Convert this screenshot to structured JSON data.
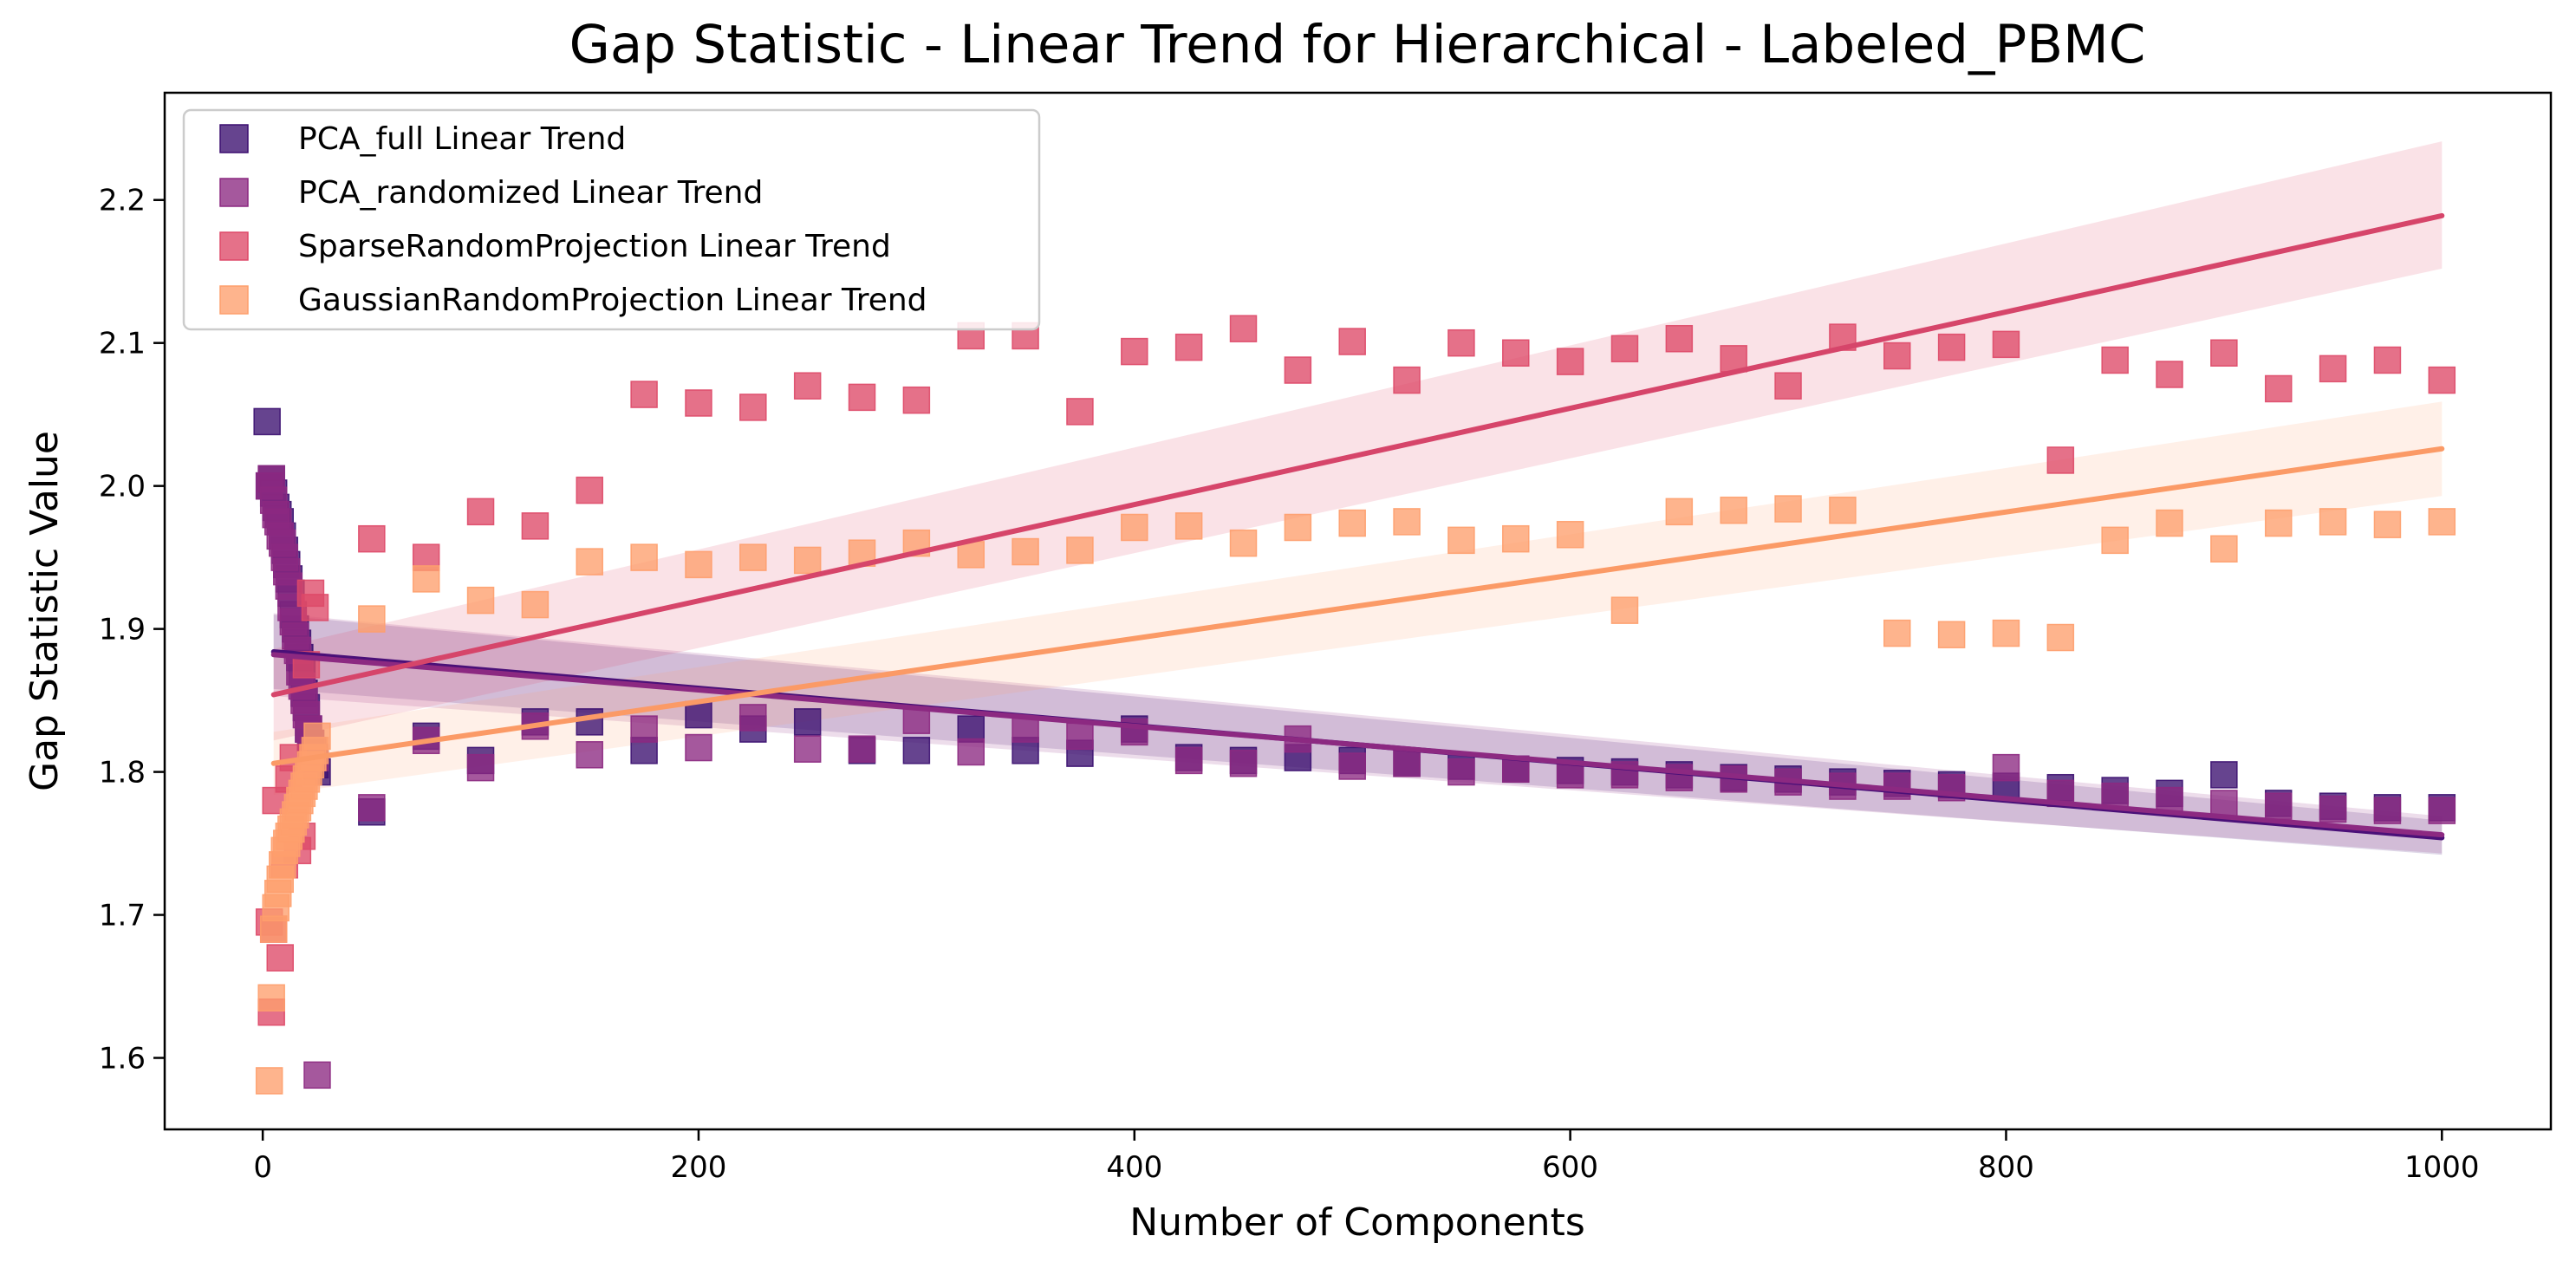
{
  "chart_data": {
    "type": "scatter",
    "title": "Gap Statistic - Linear Trend for Hierarchical - Labeled_PBMC",
    "xlabel": "Number of Components",
    "ylabel": "Gap Statistic Value",
    "xlim": [
      -45,
      1050
    ],
    "ylim": [
      1.55,
      2.275
    ],
    "x_ticks": [
      0,
      200,
      400,
      600,
      800,
      1000
    ],
    "y_ticks": [
      1.6,
      1.7,
      1.8,
      1.9,
      2.0,
      2.1,
      2.2
    ],
    "grid": false,
    "legend_position": "upper-left",
    "series": [
      {
        "name": "PCA_full Linear Trend",
        "color": "#3b0f70",
        "fit_color": "#4a1078",
        "trend": {
          "x": [
            5,
            1000
          ],
          "y": [
            1.884,
            1.754
          ]
        },
        "band": {
          "x": [
            5,
            1000
          ],
          "lower": [
            1.858,
            1.742
          ],
          "upper": [
            1.91,
            1.766
          ]
        },
        "points": [
          [
            2,
            2.045
          ],
          [
            3,
            2.0
          ],
          [
            4,
            2.005
          ],
          [
            5,
            1.995
          ],
          [
            6,
            1.985
          ],
          [
            7,
            1.98
          ],
          [
            8,
            1.975
          ],
          [
            9,
            1.965
          ],
          [
            10,
            1.955
          ],
          [
            11,
            1.945
          ],
          [
            12,
            1.935
          ],
          [
            13,
            1.925
          ],
          [
            14,
            1.91
          ],
          [
            15,
            1.9
          ],
          [
            16,
            1.89
          ],
          [
            17,
            1.88
          ],
          [
            18,
            1.87
          ],
          [
            19,
            1.855
          ],
          [
            20,
            1.845
          ],
          [
            21,
            1.83
          ],
          [
            22,
            1.82
          ],
          [
            23,
            1.81
          ],
          [
            24,
            1.805
          ],
          [
            25,
            1.8
          ],
          [
            50,
            1.772
          ],
          [
            75,
            1.825
          ],
          [
            100,
            1.808
          ],
          [
            125,
            1.835
          ],
          [
            150,
            1.835
          ],
          [
            175,
            1.815
          ],
          [
            200,
            1.84
          ],
          [
            225,
            1.83
          ],
          [
            250,
            1.835
          ],
          [
            275,
            1.815
          ],
          [
            300,
            1.815
          ],
          [
            325,
            1.83
          ],
          [
            350,
            1.815
          ],
          [
            375,
            1.813
          ],
          [
            400,
            1.83
          ],
          [
            425,
            1.81
          ],
          [
            450,
            1.808
          ],
          [
            475,
            1.81
          ],
          [
            500,
            1.808
          ],
          [
            525,
            1.806
          ],
          [
            550,
            1.804
          ],
          [
            575,
            1.802
          ],
          [
            600,
            1.801
          ],
          [
            625,
            1.8
          ],
          [
            650,
            1.798
          ],
          [
            675,
            1.796
          ],
          [
            700,
            1.795
          ],
          [
            725,
            1.793
          ],
          [
            750,
            1.792
          ],
          [
            775,
            1.791
          ],
          [
            800,
            1.79
          ],
          [
            825,
            1.789
          ],
          [
            850,
            1.787
          ],
          [
            875,
            1.785
          ],
          [
            900,
            1.798
          ],
          [
            925,
            1.778
          ],
          [
            950,
            1.776
          ],
          [
            975,
            1.775
          ],
          [
            1000,
            1.775
          ]
        ]
      },
      {
        "name": "PCA_randomized Linear Trend",
        "color": "#8c2981",
        "fit_color": "#8c2981",
        "trend": {
          "x": [
            5,
            1000
          ],
          "y": [
            1.882,
            1.756
          ]
        },
        "band": {
          "x": [
            5,
            1000
          ],
          "lower": [
            1.853,
            1.743
          ],
          "upper": [
            1.911,
            1.769
          ]
        },
        "points": [
          [
            3,
            2.0
          ],
          [
            4,
            2.005
          ],
          [
            5,
            1.99
          ],
          [
            6,
            1.98
          ],
          [
            7,
            1.975
          ],
          [
            8,
            1.965
          ],
          [
            9,
            1.96
          ],
          [
            10,
            1.95
          ],
          [
            11,
            1.94
          ],
          [
            12,
            1.93
          ],
          [
            13,
            1.915
          ],
          [
            14,
            1.905
          ],
          [
            15,
            1.895
          ],
          [
            16,
            1.885
          ],
          [
            17,
            1.87
          ],
          [
            18,
            1.86
          ],
          [
            19,
            1.85
          ],
          [
            20,
            1.84
          ],
          [
            21,
            1.83
          ],
          [
            22,
            1.82
          ],
          [
            23,
            1.815
          ],
          [
            24,
            1.81
          ],
          [
            25,
            1.588
          ],
          [
            50,
            1.775
          ],
          [
            75,
            1.822
          ],
          [
            100,
            1.803
          ],
          [
            125,
            1.832
          ],
          [
            150,
            1.812
          ],
          [
            175,
            1.83
          ],
          [
            200,
            1.817
          ],
          [
            225,
            1.838
          ],
          [
            250,
            1.816
          ],
          [
            275,
            1.816
          ],
          [
            300,
            1.836
          ],
          [
            325,
            1.814
          ],
          [
            350,
            1.83
          ],
          [
            375,
            1.825
          ],
          [
            400,
            1.828
          ],
          [
            425,
            1.808
          ],
          [
            450,
            1.806
          ],
          [
            475,
            1.823
          ],
          [
            500,
            1.804
          ],
          [
            525,
            1.806
          ],
          [
            550,
            1.8
          ],
          [
            575,
            1.802
          ],
          [
            600,
            1.798
          ],
          [
            625,
            1.798
          ],
          [
            650,
            1.796
          ],
          [
            675,
            1.795
          ],
          [
            700,
            1.793
          ],
          [
            725,
            1.79
          ],
          [
            750,
            1.79
          ],
          [
            775,
            1.789
          ],
          [
            800,
            1.803
          ],
          [
            825,
            1.785
          ],
          [
            850,
            1.783
          ],
          [
            875,
            1.78
          ],
          [
            900,
            1.778
          ],
          [
            925,
            1.776
          ],
          [
            950,
            1.774
          ],
          [
            975,
            1.773
          ],
          [
            1000,
            1.773
          ]
        ]
      },
      {
        "name": "SparseRandomProjection Linear Trend",
        "color": "#de4968",
        "fit_color": "#d6456a",
        "trend": {
          "x": [
            5,
            1000
          ],
          "y": [
            1.854,
            2.189
          ]
        },
        "band": {
          "x": [
            5,
            1000
          ],
          "lower": [
            1.822,
            2.152
          ],
          "upper": [
            1.886,
            2.241
          ]
        },
        "points": [
          [
            3,
            1.695
          ],
          [
            4,
            1.632
          ],
          [
            5,
            1.69
          ],
          [
            6,
            1.78
          ],
          [
            8,
            1.67
          ],
          [
            10,
            1.735
          ],
          [
            12,
            1.795
          ],
          [
            14,
            1.81
          ],
          [
            16,
            1.745
          ],
          [
            18,
            1.755
          ],
          [
            20,
            1.875
          ],
          [
            22,
            1.925
          ],
          [
            24,
            1.915
          ],
          [
            50,
            1.963
          ],
          [
            75,
            1.95
          ],
          [
            100,
            1.982
          ],
          [
            125,
            1.972
          ],
          [
            150,
            1.997
          ],
          [
            175,
            2.064
          ],
          [
            200,
            2.058
          ],
          [
            225,
            2.055
          ],
          [
            250,
            2.07
          ],
          [
            275,
            2.062
          ],
          [
            300,
            2.06
          ],
          [
            325,
            2.105
          ],
          [
            350,
            2.105
          ],
          [
            375,
            2.052
          ],
          [
            400,
            2.094
          ],
          [
            425,
            2.097
          ],
          [
            450,
            2.11
          ],
          [
            475,
            2.081
          ],
          [
            500,
            2.101
          ],
          [
            525,
            2.074
          ],
          [
            550,
            2.1
          ],
          [
            575,
            2.093
          ],
          [
            600,
            2.087
          ],
          [
            625,
            2.096
          ],
          [
            650,
            2.103
          ],
          [
            675,
            2.089
          ],
          [
            700,
            2.07
          ],
          [
            725,
            2.104
          ],
          [
            750,
            2.091
          ],
          [
            775,
            2.097
          ],
          [
            800,
            2.099
          ],
          [
            825,
            2.018
          ],
          [
            850,
            2.088
          ],
          [
            875,
            2.078
          ],
          [
            900,
            2.093
          ],
          [
            925,
            2.068
          ],
          [
            950,
            2.082
          ],
          [
            975,
            2.088
          ],
          [
            1000,
            2.074
          ]
        ]
      },
      {
        "name": "GaussianRandomProjection Linear Trend",
        "color": "#fe9f6d",
        "fit_color": "#fb9a66",
        "trend": {
          "x": [
            5,
            1000
          ],
          "y": [
            1.806,
            2.026
          ]
        },
        "band": {
          "x": [
            5,
            1000
          ],
          "lower": [
            1.784,
            1.993
          ],
          "upper": [
            1.828,
            2.059
          ]
        },
        "points": [
          [
            3,
            1.584
          ],
          [
            4,
            1.642
          ],
          [
            5,
            1.69
          ],
          [
            6,
            1.705
          ],
          [
            7,
            1.715
          ],
          [
            8,
            1.725
          ],
          [
            9,
            1.735
          ],
          [
            10,
            1.745
          ],
          [
            11,
            1.75
          ],
          [
            12,
            1.755
          ],
          [
            13,
            1.76
          ],
          [
            14,
            1.765
          ],
          [
            15,
            1.77
          ],
          [
            16,
            1.775
          ],
          [
            17,
            1.78
          ],
          [
            18,
            1.785
          ],
          [
            19,
            1.79
          ],
          [
            20,
            1.795
          ],
          [
            21,
            1.8
          ],
          [
            22,
            1.805
          ],
          [
            23,
            1.81
          ],
          [
            24,
            1.815
          ],
          [
            25,
            1.825
          ],
          [
            50,
            1.907
          ],
          [
            75,
            1.935
          ],
          [
            100,
            1.92
          ],
          [
            125,
            1.917
          ],
          [
            150,
            1.947
          ],
          [
            175,
            1.95
          ],
          [
            200,
            1.945
          ],
          [
            225,
            1.95
          ],
          [
            250,
            1.948
          ],
          [
            275,
            1.953
          ],
          [
            300,
            1.96
          ],
          [
            325,
            1.952
          ],
          [
            350,
            1.954
          ],
          [
            375,
            1.955
          ],
          [
            400,
            1.971
          ],
          [
            425,
            1.972
          ],
          [
            450,
            1.96
          ],
          [
            475,
            1.971
          ],
          [
            500,
            1.974
          ],
          [
            525,
            1.975
          ],
          [
            550,
            1.962
          ],
          [
            575,
            1.963
          ],
          [
            600,
            1.966
          ],
          [
            625,
            1.913
          ],
          [
            650,
            1.982
          ],
          [
            675,
            1.983
          ],
          [
            700,
            1.984
          ],
          [
            725,
            1.983
          ],
          [
            750,
            1.897
          ],
          [
            775,
            1.896
          ],
          [
            800,
            1.897
          ],
          [
            825,
            1.894
          ],
          [
            850,
            1.962
          ],
          [
            875,
            1.974
          ],
          [
            900,
            1.956
          ],
          [
            925,
            1.974
          ],
          [
            950,
            1.975
          ],
          [
            975,
            1.973
          ],
          [
            1000,
            1.975
          ]
        ]
      }
    ]
  }
}
